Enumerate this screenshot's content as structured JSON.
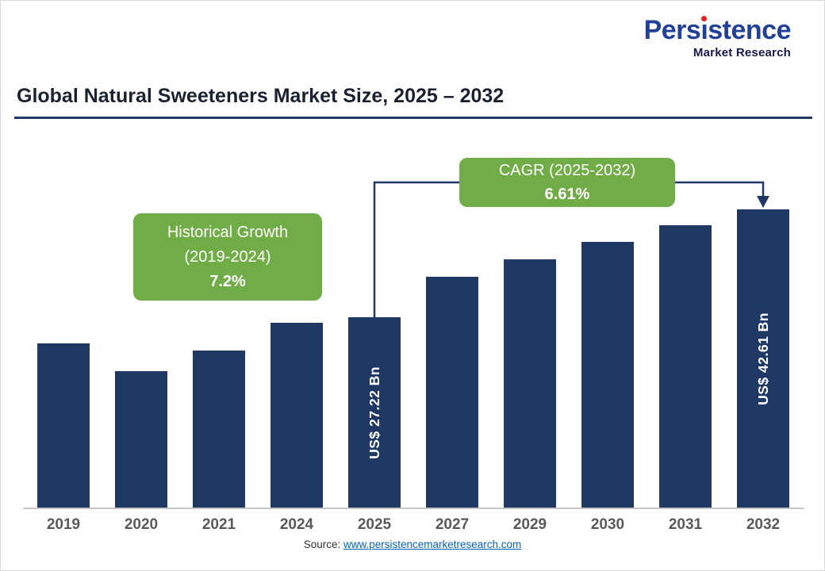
{
  "logo": {
    "brand": "Persistence",
    "tagline": "Market Research"
  },
  "header": {
    "title": "Global Natural Sweeteners Market Size, 2025 – 2032"
  },
  "callouts": {
    "historical": {
      "line1": "Historical Growth",
      "line2": "(2019-2024)",
      "value": "7.2%"
    },
    "cagr": {
      "line1": "CAGR (2025-2032)",
      "value": "6.61%"
    }
  },
  "chart_data": {
    "type": "bar",
    "title": "Global Natural Sweeteners Market Size, 2025 – 2032",
    "unit": "US$ Bn",
    "categories": [
      "2019",
      "2020",
      "2021",
      "2024",
      "2025",
      "2027",
      "2029",
      "2030",
      "2031",
      "2032"
    ],
    "values": [
      23.5,
      19.5,
      22.5,
      26.5,
      27.22,
      33,
      35.5,
      38,
      40.3,
      42.61
    ],
    "bar_labels": [
      "",
      "",
      "",
      "",
      "US$ 27.22 Bn",
      "",
      "",
      "",
      "",
      "US$ 42.61 Bn"
    ],
    "annotations": [
      "Historical Growth (2019-2024) 7.2%",
      "CAGR (2025-2032) 6.61%"
    ],
    "xlabel": "",
    "ylabel": "",
    "ylim": [
      0,
      45
    ],
    "grid": false,
    "legend": false,
    "bar_color": "#1F3864",
    "callout_color": "#70AD47",
    "axis_line_color": "#C6C6C6"
  },
  "footer": {
    "source_label": "Source: ",
    "source_link": "www.persistencemarketresearch.com"
  }
}
